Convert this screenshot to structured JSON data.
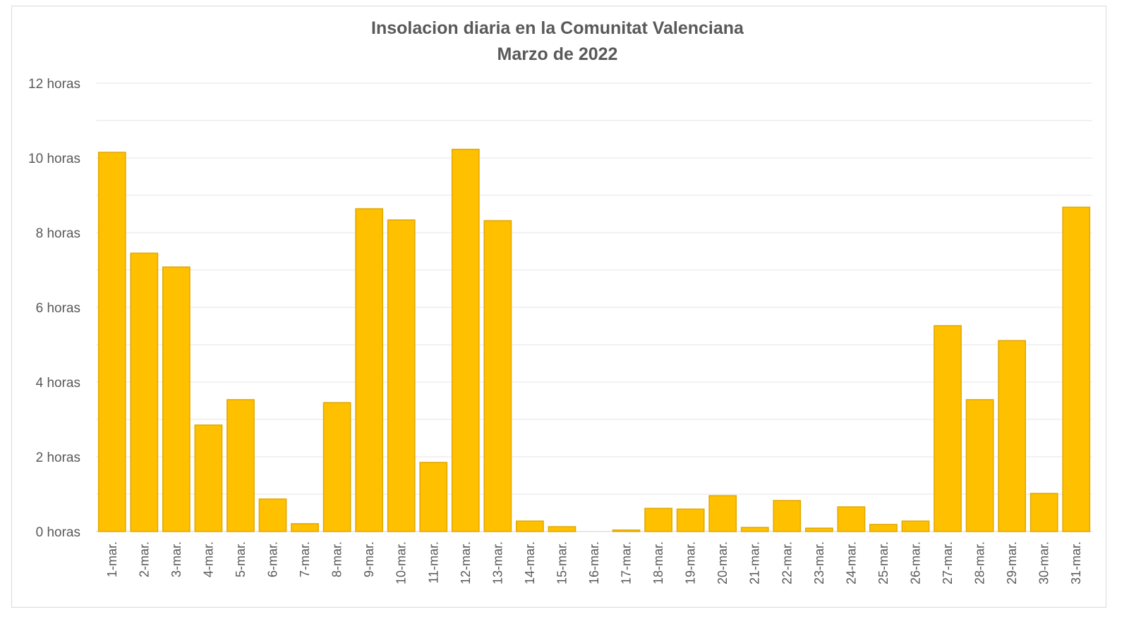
{
  "chart_data": {
    "type": "bar",
    "title": "Insolacion diaria en la Comunitat Valenciana",
    "subtitle": "Marzo de 2022",
    "xlabel": "",
    "ylabel": "",
    "ylim": [
      0,
      12
    ],
    "yticks": [
      0,
      2,
      4,
      6,
      8,
      10,
      12
    ],
    "ytick_labels": [
      "0 horas",
      "2 horas",
      "4 horas",
      "6 horas",
      "8 horas",
      "10 horas",
      "12 horas"
    ],
    "grid": true,
    "bar_color": "#FFC000",
    "categories": [
      "1-mar.",
      "2-mar.",
      "3-mar.",
      "4-mar.",
      "5-mar.",
      "6-mar.",
      "7-mar.",
      "8-mar.",
      "9-mar.",
      "10-mar.",
      "11-mar.",
      "12-mar.",
      "13-mar.",
      "14-mar.",
      "15-mar.",
      "16-mar.",
      "17-mar.",
      "18-mar.",
      "19-mar.",
      "20-mar.",
      "21-mar.",
      "22-mar.",
      "23-mar.",
      "24-mar.",
      "25-mar.",
      "26-mar.",
      "27-mar.",
      "28-mar.",
      "29-mar.",
      "30-mar.",
      "31-mar."
    ],
    "values": [
      10.15,
      7.45,
      7.08,
      2.85,
      3.53,
      0.87,
      0.21,
      3.45,
      8.64,
      8.34,
      1.85,
      10.23,
      8.32,
      0.28,
      0.13,
      0,
      0.04,
      0.62,
      0.6,
      0.96,
      0.11,
      0.83,
      0.09,
      0.66,
      0.19,
      0.28,
      5.51,
      3.53,
      5.11,
      1.02,
      8.68
    ]
  }
}
